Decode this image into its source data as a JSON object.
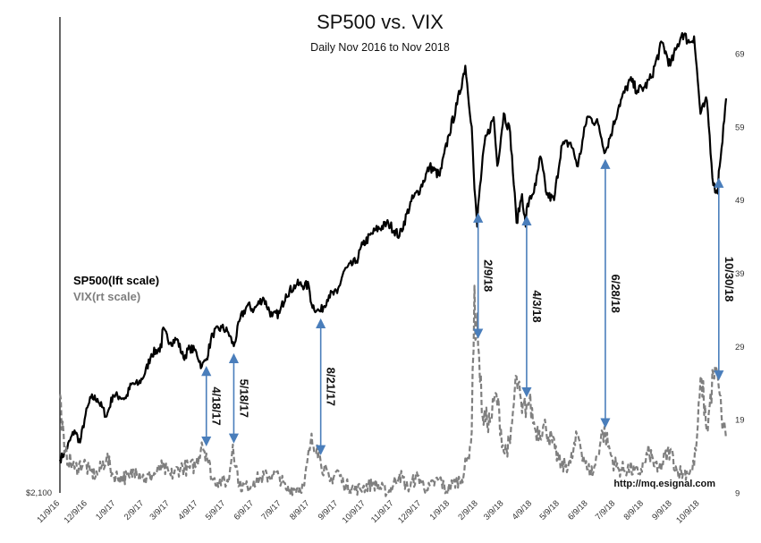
{
  "chart_data": {
    "type": "line",
    "title": "SP500 vs. VIX",
    "subtitle": "Daily Nov 2016 to Nov 2018",
    "left_axis": {
      "labels": [
        "$2,100"
      ]
    },
    "right_axis": {
      "range": [
        9,
        74
      ],
      "ticks": [
        9,
        19,
        29,
        39,
        49,
        59,
        69
      ]
    },
    "x_range": [
      "2016-11-09",
      "2018-11-07"
    ],
    "x_tick_labels": [
      "11/9/16",
      "12/9/16",
      "1/9/17",
      "2/9/17",
      "3/9/17",
      "4/9/17",
      "5/9/17",
      "6/9/17",
      "7/9/17",
      "8/9/17",
      "9/9/17",
      "10/9/17",
      "11/9/17",
      "12/9/17",
      "1/9/18",
      "2/9/18",
      "3/9/18",
      "4/9/18",
      "5/9/18",
      "6/9/18",
      "7/9/18",
      "8/9/18",
      "9/9/18",
      "10/9/18"
    ],
    "legend": [
      {
        "name": "SP500(lft scale)",
        "color": "#000000",
        "style": "solid"
      },
      {
        "name": "VIX(rt scale)",
        "color": "#7f7f7f",
        "style": "dashed"
      }
    ],
    "legend_position": "left-middle",
    "grid": false,
    "series": [
      {
        "key": "sp500",
        "color": "#000000",
        "style": "solid",
        "points": [
          [
            "2016-11-09",
            2160
          ],
          [
            "2016-11-15",
            2175
          ],
          [
            "2016-11-25",
            2213
          ],
          [
            "2016-12-01",
            2191
          ],
          [
            "2016-12-07",
            2241
          ],
          [
            "2016-12-13",
            2272
          ],
          [
            "2016-12-20",
            2270
          ],
          [
            "2016-12-30",
            2238
          ],
          [
            "2017-01-06",
            2277
          ],
          [
            "2017-01-13",
            2274
          ],
          [
            "2017-01-20",
            2271
          ],
          [
            "2017-01-26",
            2296
          ],
          [
            "2017-02-03",
            2297
          ],
          [
            "2017-02-10",
            2316
          ],
          [
            "2017-02-17",
            2351
          ],
          [
            "2017-02-28",
            2363
          ],
          [
            "2017-03-01",
            2395
          ],
          [
            "2017-03-10",
            2372
          ],
          [
            "2017-03-17",
            2378
          ],
          [
            "2017-03-24",
            2344
          ],
          [
            "2017-03-31",
            2362
          ],
          [
            "2017-04-07",
            2355
          ],
          [
            "2017-04-13",
            2328
          ],
          [
            "2017-04-18",
            2342
          ],
          [
            "2017-04-25",
            2388
          ],
          [
            "2017-05-05",
            2399
          ],
          [
            "2017-05-12",
            2390
          ],
          [
            "2017-05-18",
            2365
          ],
          [
            "2017-05-25",
            2415
          ],
          [
            "2017-06-02",
            2439
          ],
          [
            "2017-06-09",
            2431
          ],
          [
            "2017-06-19",
            2453
          ],
          [
            "2017-06-29",
            2419
          ],
          [
            "2017-07-07",
            2425
          ],
          [
            "2017-07-14",
            2459
          ],
          [
            "2017-07-26",
            2477
          ],
          [
            "2017-08-08",
            2474
          ],
          [
            "2017-08-11",
            2441
          ],
          [
            "2017-08-17",
            2430
          ],
          [
            "2017-08-21",
            2428
          ],
          [
            "2017-08-30",
            2457
          ],
          [
            "2017-09-08",
            2461
          ],
          [
            "2017-09-15",
            2500
          ],
          [
            "2017-09-29",
            2519
          ],
          [
            "2017-10-06",
            2549
          ],
          [
            "2017-10-20",
            2575
          ],
          [
            "2017-11-03",
            2587
          ],
          [
            "2017-11-15",
            2564
          ],
          [
            "2017-11-28",
            2627
          ],
          [
            "2017-12-08",
            2651
          ],
          [
            "2017-12-18",
            2690
          ],
          [
            "2017-12-29",
            2673
          ],
          [
            "2018-01-08",
            2747
          ],
          [
            "2018-01-17",
            2802
          ],
          [
            "2018-01-26",
            2872
          ],
          [
            "2018-02-02",
            2762
          ],
          [
            "2018-02-05",
            2649
          ],
          [
            "2018-02-08",
            2581
          ],
          [
            "2018-02-09",
            2619
          ],
          [
            "2018-02-16",
            2732
          ],
          [
            "2018-02-26",
            2779
          ],
          [
            "2018-03-02",
            2691
          ],
          [
            "2018-03-09",
            2786
          ],
          [
            "2018-03-16",
            2752
          ],
          [
            "2018-03-23",
            2588
          ],
          [
            "2018-03-29",
            2640
          ],
          [
            "2018-04-02",
            2581
          ],
          [
            "2018-04-03",
            2614
          ],
          [
            "2018-04-13",
            2656
          ],
          [
            "2018-04-18",
            2708
          ],
          [
            "2018-04-25",
            2639
          ],
          [
            "2018-05-03",
            2629
          ],
          [
            "2018-05-11",
            2727
          ],
          [
            "2018-05-21",
            2733
          ],
          [
            "2018-05-29",
            2690
          ],
          [
            "2018-06-08",
            2779
          ],
          [
            "2018-06-13",
            2776
          ],
          [
            "2018-06-20",
            2767
          ],
          [
            "2018-06-28",
            2716
          ],
          [
            "2018-07-06",
            2759
          ],
          [
            "2018-07-13",
            2801
          ],
          [
            "2018-07-25",
            2846
          ],
          [
            "2018-08-02",
            2827
          ],
          [
            "2018-08-10",
            2833
          ],
          [
            "2018-08-17",
            2850
          ],
          [
            "2018-08-29",
            2914
          ],
          [
            "2018-09-07",
            2872
          ],
          [
            "2018-09-14",
            2904
          ],
          [
            "2018-09-20",
            2931
          ],
          [
            "2018-09-28",
            2914
          ],
          [
            "2018-10-03",
            2925
          ],
          [
            "2018-10-10",
            2785
          ],
          [
            "2018-10-17",
            2809
          ],
          [
            "2018-10-24",
            2656
          ],
          [
            "2018-10-29",
            2641
          ],
          [
            "2018-10-30",
            2682
          ],
          [
            "2018-11-02",
            2723
          ],
          [
            "2018-11-07",
            2813
          ]
        ]
      },
      {
        "key": "vix",
        "color": "#7f7f7f",
        "style": "dashed",
        "points": [
          [
            "2016-11-09",
            22.5
          ],
          [
            "2016-11-14",
            14.5
          ],
          [
            "2016-11-25",
            12.3
          ],
          [
            "2016-12-05",
            13.1
          ],
          [
            "2016-12-12",
            11.8
          ],
          [
            "2016-12-20",
            11.5
          ],
          [
            "2016-12-30",
            13.9
          ],
          [
            "2017-01-06",
            11.4
          ],
          [
            "2017-01-13",
            11.2
          ],
          [
            "2017-01-24",
            11.1
          ],
          [
            "2017-01-31",
            12.4
          ],
          [
            "2017-02-10",
            10.9
          ],
          [
            "2017-02-21",
            11.6
          ],
          [
            "2017-03-01",
            12.5
          ],
          [
            "2017-03-10",
            11.4
          ],
          [
            "2017-03-21",
            12.5
          ],
          [
            "2017-03-31",
            12.4
          ],
          [
            "2017-04-07",
            12.9
          ],
          [
            "2017-04-13",
            15.9
          ],
          [
            "2017-04-18",
            14.4
          ],
          [
            "2017-04-25",
            10.8
          ],
          [
            "2017-05-05",
            10.6
          ],
          [
            "2017-05-12",
            10.4
          ],
          [
            "2017-05-17",
            15.6
          ],
          [
            "2017-05-24",
            10.0
          ],
          [
            "2017-06-02",
            9.8
          ],
          [
            "2017-06-09",
            10.7
          ],
          [
            "2017-06-15",
            11.0
          ],
          [
            "2017-06-29",
            11.4
          ],
          [
            "2017-07-07",
            11.2
          ],
          [
            "2017-07-14",
            9.5
          ],
          [
            "2017-07-26",
            9.6
          ],
          [
            "2017-08-03",
            10.0
          ],
          [
            "2017-08-10",
            16.0
          ],
          [
            "2017-08-17",
            15.5
          ],
          [
            "2017-08-21",
            13.2
          ],
          [
            "2017-08-31",
            10.6
          ],
          [
            "2017-09-08",
            12.1
          ],
          [
            "2017-09-15",
            10.2
          ],
          [
            "2017-09-29",
            9.5
          ],
          [
            "2017-10-06",
            9.7
          ],
          [
            "2017-10-17",
            10.3
          ],
          [
            "2017-11-03",
            9.1
          ],
          [
            "2017-11-15",
            11.6
          ],
          [
            "2017-11-24",
            9.7
          ],
          [
            "2017-12-05",
            11.3
          ],
          [
            "2017-12-15",
            9.4
          ],
          [
            "2017-12-29",
            11.0
          ],
          [
            "2018-01-05",
            9.2
          ],
          [
            "2018-01-12",
            10.2
          ],
          [
            "2018-01-22",
            11.0
          ],
          [
            "2018-01-29",
            13.8
          ],
          [
            "2018-02-02",
            17.3
          ],
          [
            "2018-02-05",
            37.3
          ],
          [
            "2018-02-06",
            29.9
          ],
          [
            "2018-02-08",
            33.5
          ],
          [
            "2018-02-09",
            29.1
          ],
          [
            "2018-02-14",
            19.3
          ],
          [
            "2018-02-22",
            18.7
          ],
          [
            "2018-03-01",
            22.5
          ],
          [
            "2018-03-09",
            14.6
          ],
          [
            "2018-03-16",
            15.8
          ],
          [
            "2018-03-23",
            24.9
          ],
          [
            "2018-03-29",
            19.9
          ],
          [
            "2018-04-03",
            21.1
          ],
          [
            "2018-04-06",
            21.5
          ],
          [
            "2018-04-13",
            17.4
          ],
          [
            "2018-04-24",
            18.0
          ],
          [
            "2018-05-04",
            14.8
          ],
          [
            "2018-05-11",
            12.6
          ],
          [
            "2018-05-21",
            13.1
          ],
          [
            "2018-05-29",
            17.0
          ],
          [
            "2018-06-08",
            12.2
          ],
          [
            "2018-06-15",
            11.9
          ],
          [
            "2018-06-25",
            17.3
          ],
          [
            "2018-06-28",
            16.9
          ],
          [
            "2018-07-06",
            13.4
          ],
          [
            "2018-07-13",
            12.2
          ],
          [
            "2018-07-25",
            12.3
          ],
          [
            "2018-08-03",
            11.6
          ],
          [
            "2018-08-10",
            13.2
          ],
          [
            "2018-08-15",
            14.6
          ],
          [
            "2018-08-24",
            11.9
          ],
          [
            "2018-09-07",
            14.9
          ],
          [
            "2018-09-14",
            12.1
          ],
          [
            "2018-09-21",
            11.7
          ],
          [
            "2018-10-01",
            12.0
          ],
          [
            "2018-10-05",
            14.8
          ],
          [
            "2018-10-11",
            24.9
          ],
          [
            "2018-10-17",
            17.4
          ],
          [
            "2018-10-24",
            25.2
          ],
          [
            "2018-10-29",
            24.7
          ],
          [
            "2018-10-30",
            23.4
          ],
          [
            "2018-11-02",
            19.5
          ],
          [
            "2018-11-07",
            16.4
          ]
        ]
      }
    ],
    "annotations": [
      {
        "label": "4/18/17",
        "date": "2017-04-18"
      },
      {
        "label": "5/18/17",
        "date": "2017-05-18"
      },
      {
        "label": "8/21/17",
        "date": "2017-08-21"
      },
      {
        "label": "2/9/18",
        "date": "2018-02-09"
      },
      {
        "label": "4/3/18",
        "date": "2018-04-03"
      },
      {
        "label": "6/28/18",
        "date": "2018-06-28"
      },
      {
        "label": "10/30/18",
        "date": "2018-10-30"
      }
    ],
    "source": "http://mq.esignal.com"
  }
}
